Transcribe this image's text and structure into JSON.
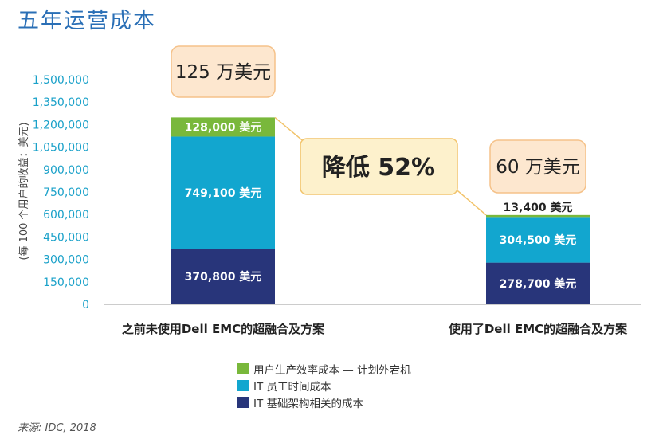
{
  "title": "五年运营成本",
  "source": "来源: IDC, 2018",
  "colors": {
    "green": "#79b83b",
    "cyan": "#12a6cf",
    "navy": "#28357a",
    "axis_text": "#1aa1c9",
    "callout_fill": "#fde7cf",
    "callout_border": "#f5c28a",
    "reduction_fill": "#fdf1cc",
    "reduction_border": "#f2c36a"
  },
  "chart_data": {
    "type": "bar",
    "stacked": true,
    "ylabel": "(每 100 个用户的收益：美元)",
    "ylim": [
      0,
      1500000
    ],
    "yticks": [
      "0",
      "150,000",
      "300,000",
      "450,000",
      "600,000",
      "750,000",
      "900,000",
      "1,050,000",
      "1,200,000",
      "1,350,000",
      "1,500,000"
    ],
    "categories": [
      "之前未使用Dell EMC的超融合及方案",
      "使用了Dell EMC的超融合及方案"
    ],
    "series": [
      {
        "name": "IT 基础架构相关的成本",
        "color": "navy",
        "values": [
          370800,
          278700
        ],
        "labels": [
          "370,800 美元",
          "278,700 美元"
        ]
      },
      {
        "name": "IT 员工时间成本",
        "color": "cyan",
        "values": [
          749100,
          304500
        ],
        "labels": [
          "749,100 美元",
          "304,500 美元"
        ]
      },
      {
        "name": "用户生产效率成本 — 计划外宕机",
        "color": "green",
        "values": [
          128000,
          13400
        ],
        "labels": [
          "128,000 美元",
          "13,400 美元"
        ]
      }
    ],
    "totals_labels": [
      "125 万美元",
      "60 万美元"
    ],
    "reduction_label": "降低 52%",
    "grid": false,
    "legend_position": "bottom-center"
  }
}
